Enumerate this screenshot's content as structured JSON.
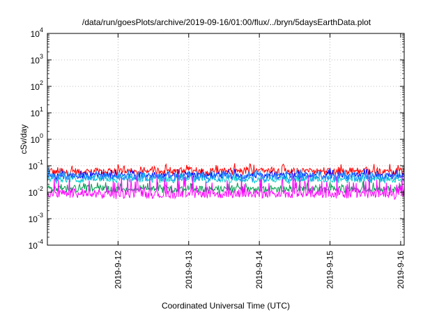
{
  "chart_data": {
    "type": "line",
    "title": "/data/run/goesPlots/archive/2019-09-16/01:00/flux/../bryn/5daysEarthData.plot",
    "xlabel": "Coordinated Universal Time (UTC)",
    "ylabel": "cSv/day",
    "y_scale": "log",
    "ylim_exponents": [
      -4,
      4
    ],
    "y_tick_exponents": [
      4,
      3,
      2,
      1,
      0,
      -1,
      -2,
      -3,
      -4
    ],
    "x_tick_labels": [
      "2019-9-12",
      "2019-9-13",
      "2019-9-14",
      "2019-9-15",
      "2019-9-16"
    ],
    "x_start_day_offset": -1.0,
    "x_end_day_offset": 4.05,
    "grid": true,
    "legend": "none",
    "series": [
      {
        "color": "#ff0000",
        "base": 0.06,
        "spread": 0.26,
        "spike": 0.12
      },
      {
        "color": "#0000ff",
        "base": 0.042,
        "spread": 0.22,
        "spike": 0.1
      },
      {
        "color": "#00cccc",
        "base": 0.03,
        "spread": 0.22,
        "spike": 0.1
      },
      {
        "color": "#1e90ff",
        "base": 0.038,
        "spread": 0.28,
        "spike": 0.12
      },
      {
        "color": "#00a050",
        "base": 0.013,
        "spread": 0.22,
        "spike": 0.1
      },
      {
        "color": "#ff00ff",
        "base": 0.0085,
        "spread": 0.3,
        "spike": 0.4
      }
    ]
  }
}
